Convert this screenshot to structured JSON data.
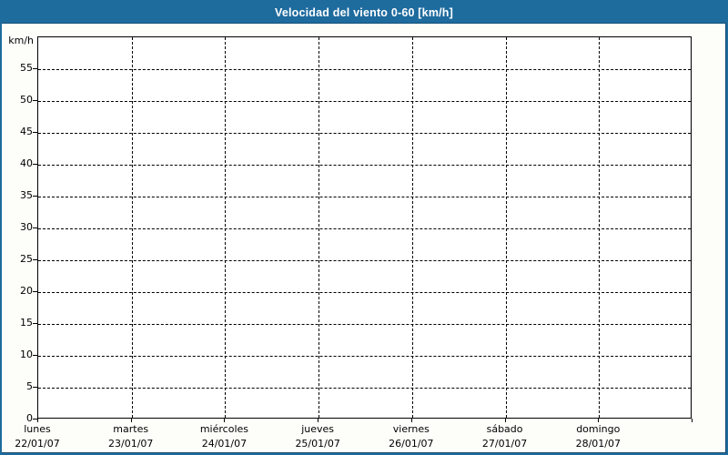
{
  "window": {
    "border_color": "#1e6b9e",
    "background": "#fdfefa"
  },
  "header": {
    "title": "Velocidad del viento 0-60 [km/h]",
    "background": "#1e6b9e",
    "text_color": "#ffffff"
  },
  "chart_data": {
    "type": "line",
    "title": "Velocidad del viento 0-60 [km/h]",
    "ylabel": "km/h",
    "xlabel": "",
    "ylim": [
      0,
      60
    ],
    "ytick_step": 5,
    "yticks": [
      0,
      5,
      10,
      15,
      20,
      25,
      30,
      35,
      40,
      45,
      50,
      55
    ],
    "x_categories": [
      {
        "day": "lunes",
        "date": "22/01/07"
      },
      {
        "day": "martes",
        "date": "23/01/07"
      },
      {
        "day": "miércoles",
        "date": "24/01/07"
      },
      {
        "day": "jueves",
        "date": "25/01/07"
      },
      {
        "day": "viernes",
        "date": "26/01/07"
      },
      {
        "day": "sábado",
        "date": "27/01/07"
      },
      {
        "day": "domingo",
        "date": "28/01/07"
      }
    ],
    "series": [],
    "note": "no data points plotted - empty grid",
    "grid": "dashed",
    "grid_color": "#000000",
    "plot_background": "#ffffff",
    "legend_position": "none"
  }
}
